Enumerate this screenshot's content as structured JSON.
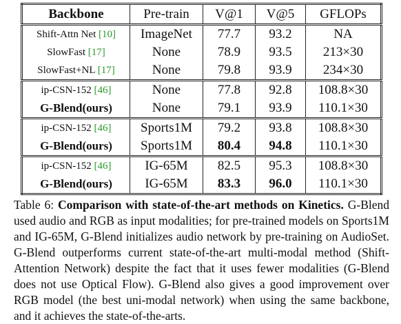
{
  "table": {
    "header": [
      "Backbone",
      "Pre-train",
      "V@1",
      "V@5",
      "GFLOPs"
    ],
    "rows": [
      {
        "backbone": "Shift-Attn Net",
        "cite": "[10]",
        "pretrain": "ImageNet",
        "v1": "77.7",
        "v5": "93.2",
        "gflops": "NA"
      },
      {
        "backbone": "SlowFast",
        "cite": "[17]",
        "pretrain": "None",
        "v1": "78.9",
        "v5": "93.5",
        "gflops": "213×30"
      },
      {
        "backbone": "SlowFast+NL",
        "cite": "[17]",
        "pretrain": "None",
        "v1": "79.8",
        "v5": "93.9",
        "gflops": "234×30"
      },
      {
        "backbone": "ip-CSN-152",
        "cite": "[46]",
        "pretrain": "None",
        "v1": "77.8",
        "v5": "92.8",
        "gflops": "108.8×30"
      },
      {
        "backbone": "G-Blend(ours)",
        "pretrain": "None",
        "v1": "79.1",
        "v5": "93.9",
        "gflops": "110.1×30"
      },
      {
        "backbone": "ip-CSN-152",
        "cite": "[46]",
        "pretrain": "Sports1M",
        "v1": "79.2",
        "v5": "93.8",
        "gflops": "108.8×30"
      },
      {
        "backbone": "G-Blend(ours)",
        "pretrain": "Sports1M",
        "v1": "80.4",
        "v5": "94.8",
        "gflops": "110.1×30"
      },
      {
        "backbone": "ip-CSN-152",
        "cite": "[46]",
        "pretrain": "IG-65M",
        "v1": "82.5",
        "v5": "95.3",
        "gflops": "108.8×30"
      },
      {
        "backbone": "G-Blend(ours)",
        "pretrain": "IG-65M",
        "v1": "83.3",
        "v5": "96.0",
        "gflops": "110.1×30"
      }
    ]
  },
  "caption": {
    "label": "Table 6:",
    "title": "Comparison with state-of-the-art methods on Kinetics.",
    "text": "G-Blend used audio and RGB as input modalities; for pre-trained models on Sports1M and IG-65M, G-Blend initializes audio network by pre-training on AudioSet. G-Blend outperforms current state-of-the-art multi-modal method (Shift-Attention Network) despite the fact that it uses fewer modalities (G-Blend does not use Optical Flow). G-Blend also gives a good improvement over RGB model (the best uni-modal network) when using the same backbone, and it achieves the state-of-the-arts."
  }
}
